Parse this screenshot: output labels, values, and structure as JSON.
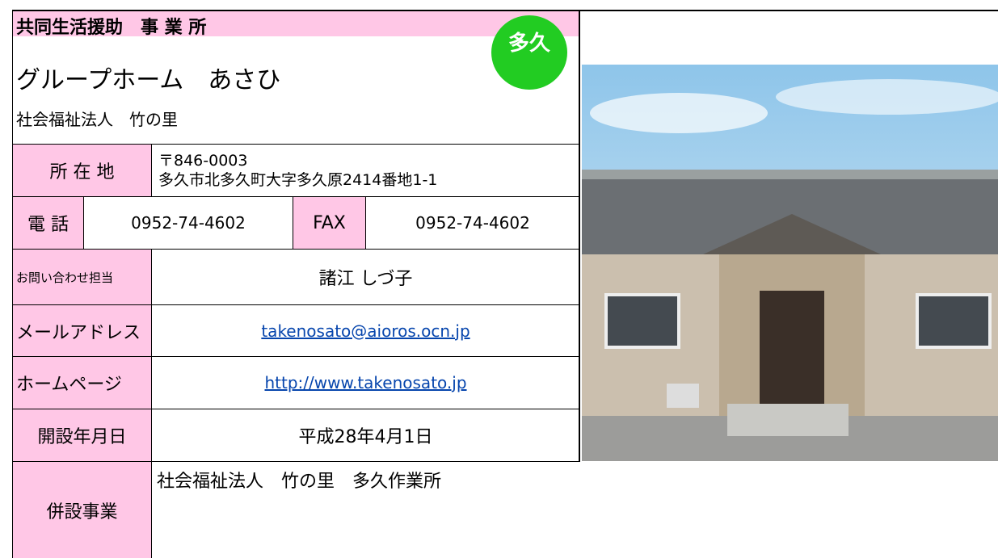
{
  "header": {
    "category": "共同生活援助　事 業 所",
    "badge": "多久",
    "name": "グループホーム　あさひ",
    "corporation": "社会福祉法人　竹の里"
  },
  "address": {
    "label": "所 在 地",
    "postal": "〒846-0003",
    "line": "多久市北多久町大字多久原2414番地1-1"
  },
  "phone": {
    "label": "電 話",
    "value": "0952-74-4602",
    "fax_label": "FAX",
    "fax_value": "0952-74-4602"
  },
  "contact": {
    "label": "お問い合わせ担当",
    "value": "諸江 しづ子"
  },
  "email": {
    "label": "メールアドレス",
    "value": "takenosato@aioros.ocn.jp"
  },
  "homepage": {
    "label": "ホームページ",
    "value": "http://www.takenosato.jp"
  },
  "opened": {
    "label": "開設年月日",
    "value": "平成28年4月1日"
  },
  "related": {
    "label": "併設事業",
    "value": "社会福祉法人　竹の里　多久作業所"
  }
}
